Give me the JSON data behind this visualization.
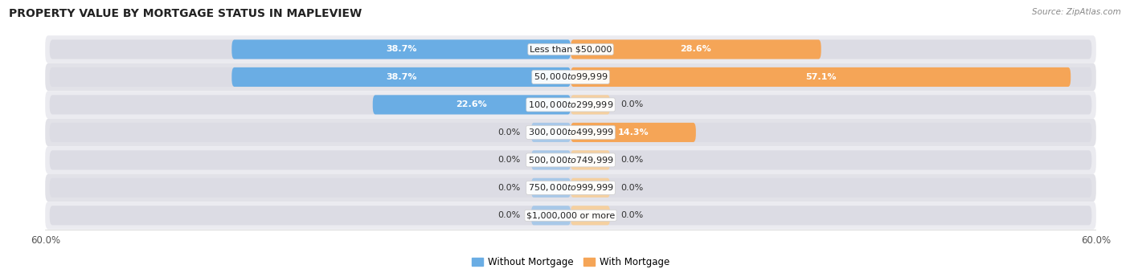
{
  "title": "PROPERTY VALUE BY MORTGAGE STATUS IN MAPLEVIEW",
  "source": "Source: ZipAtlas.com",
  "categories": [
    "Less than $50,000",
    "$50,000 to $99,999",
    "$100,000 to $299,999",
    "$300,000 to $499,999",
    "$500,000 to $749,999",
    "$750,000 to $999,999",
    "$1,000,000 or more"
  ],
  "without_mortgage": [
    38.7,
    38.7,
    22.6,
    0.0,
    0.0,
    0.0,
    0.0
  ],
  "with_mortgage": [
    28.6,
    57.1,
    0.0,
    14.3,
    0.0,
    0.0,
    0.0
  ],
  "xlim": 60.0,
  "color_without": "#6aade4",
  "color_with": "#f5a557",
  "color_without_stub": "#a8c8e8",
  "color_with_stub": "#f5d0a0",
  "row_bg": "#e8e8ec",
  "bar_bg": "#dcdce4",
  "title_fontsize": 10,
  "label_fontsize": 8,
  "value_fontsize": 8,
  "tick_fontsize": 8.5,
  "legend_fontsize": 8.5,
  "stub_size": 4.5
}
